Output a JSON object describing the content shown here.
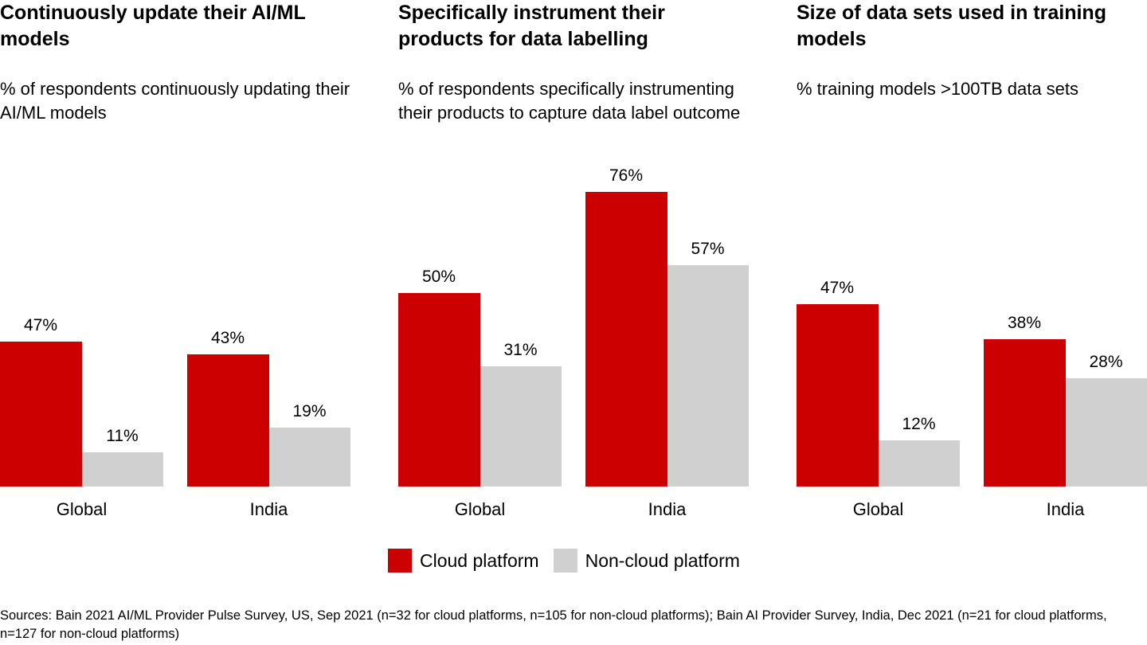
{
  "colors": {
    "cloud": "#cc0000",
    "noncloud": "#d0d0d0"
  },
  "chart_data": [
    {
      "type": "bar",
      "title": "Continuously update their AI/ML models",
      "subtitle": "% of respondents continuously updating their AI/ML models",
      "categories": [
        "Global",
        "India"
      ],
      "series": [
        {
          "name": "Cloud platform",
          "values": [
            47,
            43
          ],
          "labels": [
            "47%",
            "43%"
          ]
        },
        {
          "name": "Non-cloud platform",
          "values": [
            11,
            19
          ],
          "labels": [
            "11%",
            "19%"
          ]
        }
      ],
      "unit": "%",
      "grid": false
    },
    {
      "type": "bar",
      "title": "Specifically instrument their products for data labelling",
      "subtitle": "% of respondents specifically instrumenting their products to capture data label outcome",
      "categories": [
        "Global",
        "India"
      ],
      "series": [
        {
          "name": "Cloud platform",
          "values": [
            50,
            76
          ],
          "labels": [
            "50%",
            "76%"
          ]
        },
        {
          "name": "Non-cloud platform",
          "values": [
            31,
            57
          ],
          "labels": [
            "31%",
            "57%"
          ]
        }
      ],
      "unit": "%",
      "grid": false
    },
    {
      "type": "bar",
      "title": "Size of data sets used in training models",
      "subtitle": "% training models >100TB data sets",
      "categories": [
        "Global",
        "India"
      ],
      "series": [
        {
          "name": "Cloud platform",
          "values": [
            47,
            38
          ],
          "labels": [
            "47%",
            "38%"
          ]
        },
        {
          "name": "Non-cloud platform",
          "values": [
            12,
            28
          ],
          "labels": [
            "12%",
            "28%"
          ]
        }
      ],
      "unit": "%",
      "grid": false
    }
  ],
  "legend": {
    "position": "bottom-center",
    "items": [
      "Cloud platform",
      "Non-cloud platform"
    ]
  },
  "source": "Sources: Bain 2021 AI/ML Provider Pulse Survey, US, Sep 2021 (n=32 for cloud platforms, n=105 for non-cloud platforms); Bain AI Provider Survey, India, Dec 2021 (n=21 for cloud platforms, n=127 for non-cloud platforms)"
}
